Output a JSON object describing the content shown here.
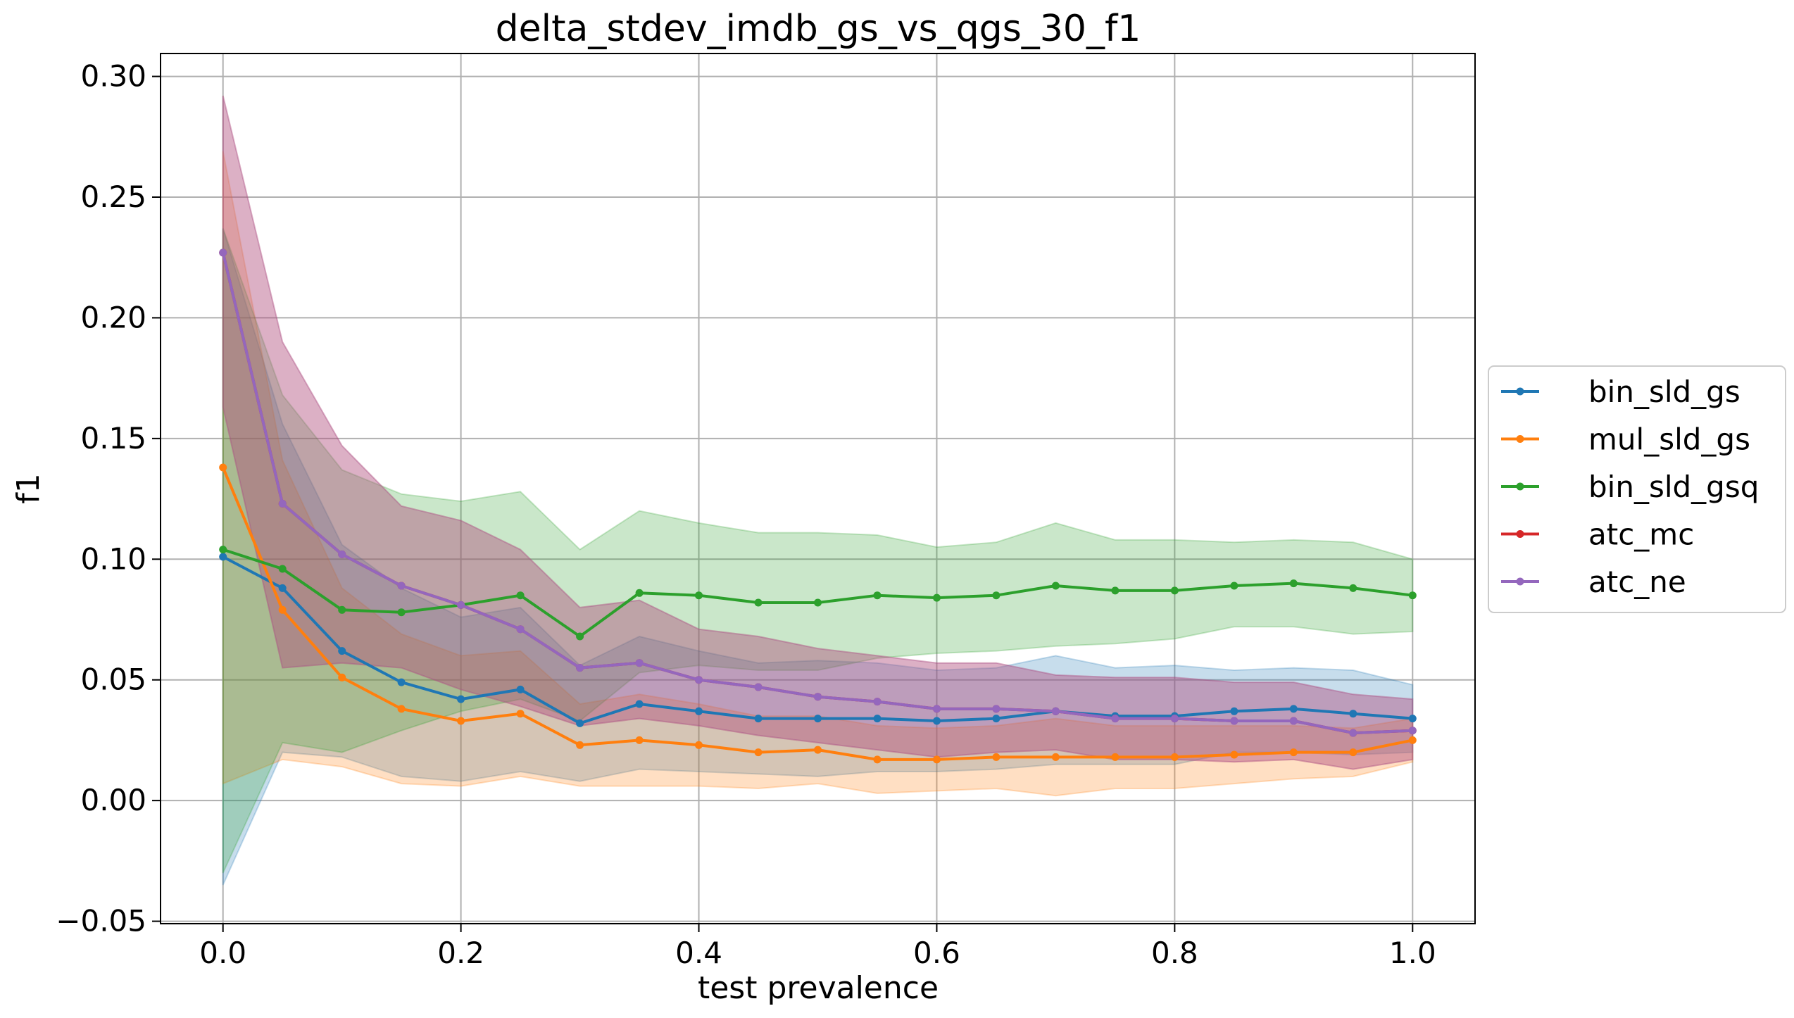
{
  "chart_data": {
    "type": "line",
    "title": "delta_stdev_imdb_gs_vs_qgs_30_f1",
    "xlabel": "test prevalence",
    "ylabel": "f1",
    "xlim": [
      -0.0525,
      1.0525
    ],
    "ylim": [
      -0.051,
      0.3095
    ],
    "xticks": [
      0.0,
      0.2,
      0.4,
      0.6,
      0.8,
      1.0
    ],
    "xtick_labels": [
      "0.0",
      "0.2",
      "0.4",
      "0.6",
      "0.8",
      "1.0"
    ],
    "yticks": [
      -0.05,
      0.0,
      0.05,
      0.1,
      0.15,
      0.2,
      0.25,
      0.3
    ],
    "ytick_labels": [
      "−0.05",
      "0.00",
      "0.05",
      "0.10",
      "0.15",
      "0.20",
      "0.25",
      "0.30"
    ],
    "grid": true,
    "legend_position": "outside-right",
    "x": [
      0.0,
      0.05,
      0.1,
      0.15,
      0.2,
      0.25,
      0.3,
      0.35,
      0.4,
      0.45,
      0.5,
      0.55,
      0.6,
      0.65,
      0.7,
      0.75,
      0.8,
      0.85,
      0.9,
      0.95,
      1.0
    ],
    "series": [
      {
        "name": "bin_sld_gs",
        "color": "#1f77b4",
        "values": [
          0.101,
          0.088,
          0.062,
          0.049,
          0.042,
          0.046,
          0.032,
          0.04,
          0.037,
          0.034,
          0.034,
          0.034,
          0.033,
          0.034,
          0.037,
          0.035,
          0.035,
          0.037,
          0.038,
          0.036,
          0.034
        ],
        "lower": [
          -0.035,
          0.02,
          0.018,
          0.01,
          0.008,
          0.012,
          0.008,
          0.013,
          0.012,
          0.011,
          0.01,
          0.012,
          0.012,
          0.013,
          0.015,
          0.015,
          0.015,
          0.02,
          0.02,
          0.019,
          0.02
        ],
        "upper": [
          0.237,
          0.156,
          0.106,
          0.088,
          0.076,
          0.08,
          0.056,
          0.068,
          0.062,
          0.057,
          0.058,
          0.057,
          0.054,
          0.055,
          0.06,
          0.055,
          0.056,
          0.054,
          0.055,
          0.054,
          0.048
        ]
      },
      {
        "name": "mul_sld_gs",
        "color": "#ff7f0e",
        "values": [
          0.138,
          0.079,
          0.051,
          0.038,
          0.033,
          0.036,
          0.023,
          0.025,
          0.023,
          0.02,
          0.021,
          0.017,
          0.017,
          0.018,
          0.018,
          0.018,
          0.018,
          0.019,
          0.02,
          0.02,
          0.025
        ],
        "lower": [
          0.007,
          0.017,
          0.014,
          0.007,
          0.006,
          0.01,
          0.006,
          0.006,
          0.006,
          0.005,
          0.007,
          0.003,
          0.004,
          0.005,
          0.002,
          0.005,
          0.005,
          0.007,
          0.009,
          0.01,
          0.016
        ],
        "upper": [
          0.269,
          0.141,
          0.088,
          0.069,
          0.06,
          0.062,
          0.04,
          0.044,
          0.04,
          0.035,
          0.035,
          0.031,
          0.03,
          0.031,
          0.034,
          0.031,
          0.031,
          0.031,
          0.031,
          0.03,
          0.034
        ]
      },
      {
        "name": "bin_sld_gsq",
        "color": "#2ca02c",
        "values": [
          0.104,
          0.096,
          0.079,
          0.078,
          0.081,
          0.085,
          0.068,
          0.086,
          0.085,
          0.082,
          0.082,
          0.085,
          0.084,
          0.085,
          0.089,
          0.087,
          0.087,
          0.089,
          0.09,
          0.088,
          0.085
        ],
        "lower": [
          -0.03,
          0.024,
          0.02,
          0.029,
          0.037,
          0.042,
          0.033,
          0.053,
          0.056,
          0.054,
          0.054,
          0.059,
          0.061,
          0.062,
          0.064,
          0.065,
          0.067,
          0.072,
          0.072,
          0.069,
          0.07
        ],
        "upper": [
          0.237,
          0.168,
          0.137,
          0.127,
          0.124,
          0.128,
          0.104,
          0.12,
          0.115,
          0.111,
          0.111,
          0.11,
          0.105,
          0.107,
          0.115,
          0.108,
          0.108,
          0.107,
          0.108,
          0.107,
          0.1
        ]
      },
      {
        "name": "atc_mc",
        "color": "#d62728",
        "values": [
          0.227,
          0.123,
          0.102,
          0.089,
          0.081,
          0.071,
          0.055,
          0.057,
          0.05,
          0.047,
          0.043,
          0.041,
          0.038,
          0.038,
          0.037,
          0.034,
          0.034,
          0.033,
          0.033,
          0.028,
          0.029
        ],
        "lower": [
          0.163,
          0.055,
          0.057,
          0.055,
          0.046,
          0.039,
          0.031,
          0.034,
          0.031,
          0.027,
          0.024,
          0.021,
          0.018,
          0.02,
          0.021,
          0.017,
          0.017,
          0.016,
          0.017,
          0.013,
          0.017
        ],
        "upper": [
          0.292,
          0.19,
          0.147,
          0.122,
          0.116,
          0.104,
          0.08,
          0.083,
          0.071,
          0.068,
          0.063,
          0.06,
          0.057,
          0.057,
          0.052,
          0.051,
          0.051,
          0.049,
          0.049,
          0.044,
          0.042
        ]
      },
      {
        "name": "atc_ne",
        "color": "#9467bd",
        "values": [
          0.227,
          0.123,
          0.102,
          0.089,
          0.081,
          0.071,
          0.055,
          0.057,
          0.05,
          0.047,
          0.043,
          0.041,
          0.038,
          0.038,
          0.037,
          0.034,
          0.034,
          0.033,
          0.033,
          0.028,
          0.029
        ],
        "lower": [
          0.163,
          0.055,
          0.057,
          0.055,
          0.046,
          0.039,
          0.031,
          0.034,
          0.031,
          0.027,
          0.024,
          0.021,
          0.018,
          0.02,
          0.021,
          0.017,
          0.017,
          0.016,
          0.017,
          0.013,
          0.017
        ],
        "upper": [
          0.292,
          0.19,
          0.147,
          0.122,
          0.116,
          0.104,
          0.08,
          0.083,
          0.071,
          0.068,
          0.063,
          0.06,
          0.057,
          0.057,
          0.052,
          0.051,
          0.051,
          0.049,
          0.049,
          0.044,
          0.042
        ]
      }
    ]
  }
}
